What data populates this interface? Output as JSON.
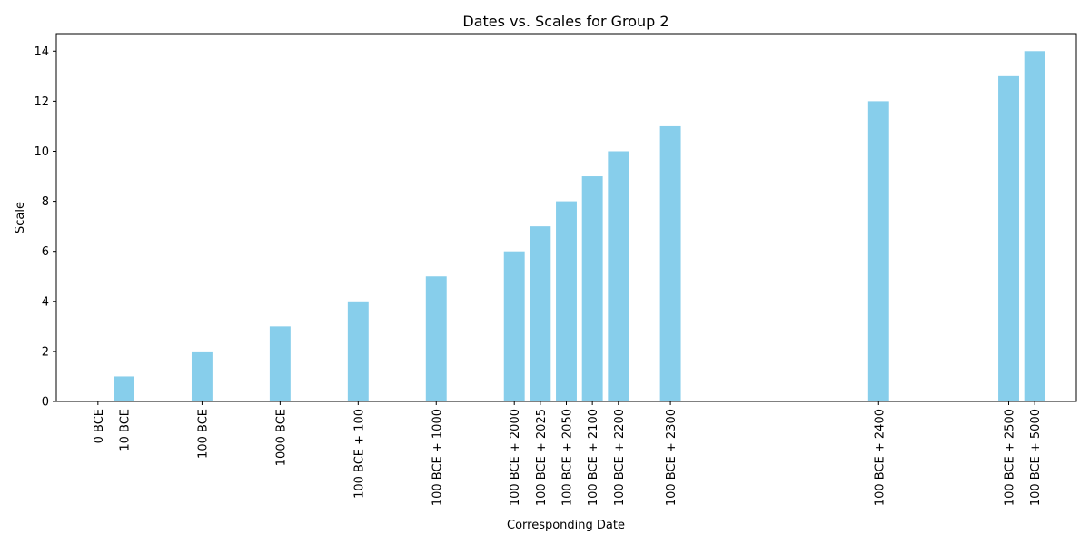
{
  "chart_data": {
    "type": "bar",
    "title": "Dates vs. Scales for Group 2",
    "xlabel": "Corresponding Date",
    "ylabel": "Scale",
    "ylim": [
      0,
      14.7
    ],
    "yticks": [
      0,
      2,
      4,
      6,
      8,
      10,
      12,
      14
    ],
    "grid": false,
    "bar_color": "#87CEEB",
    "categories": [
      "0 BCE",
      "10 BCE",
      "100 BCE",
      "1000 BCE",
      "100 BCE + 100",
      "100 BCE + 1000",
      "100 BCE + 2000",
      "100 BCE + 2025",
      "100 BCE + 2050",
      "100 BCE + 2100",
      "100 BCE + 2200",
      "100 BCE + 2300",
      "100 BCE + 2400",
      "100 BCE + 2500",
      "100 BCE + 5000"
    ],
    "x": [
      0,
      1,
      4,
      7,
      10,
      13,
      16,
      17,
      18,
      19,
      20,
      22,
      30,
      35,
      36
    ],
    "values": [
      0,
      1,
      2,
      3,
      4,
      5,
      6,
      7,
      8,
      9,
      10,
      11,
      12,
      13,
      14
    ]
  }
}
